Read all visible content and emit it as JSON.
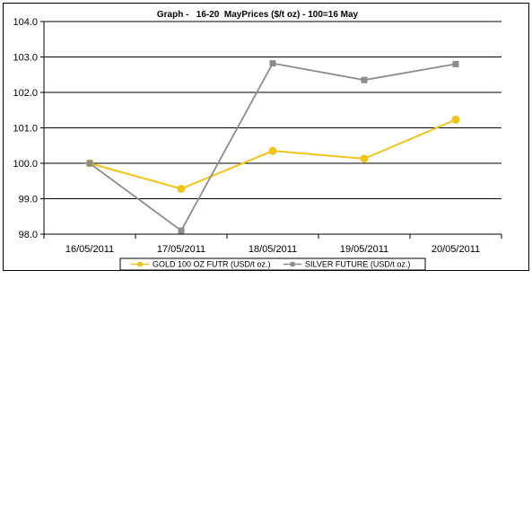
{
  "chart_data": {
    "type": "line",
    "title": "Graph -   16-20  MayPrices ($/t oz) - 100=16 May",
    "xlabel": "",
    "ylabel": "",
    "categories": [
      "16/05/2011",
      "17/05/2011",
      "18/05/2011",
      "19/05/2011",
      "20/05/2011"
    ],
    "ylim": [
      98.0,
      104.0
    ],
    "yticks": [
      "98.0",
      "99.0",
      "100.0",
      "101.0",
      "102.0",
      "103.0",
      "104.0"
    ],
    "grid": true,
    "legend_position": "bottom",
    "series": [
      {
        "name": "GOLD 100 OZ FUTR (USD/t oz.)",
        "color": "#f0c419",
        "marker": "circle",
        "values": [
          100.0,
          99.28,
          100.35,
          100.13,
          101.23
        ]
      },
      {
        "name": "SILVER FUTURE (USD/t oz.)",
        "color": "#8c8c8c",
        "marker": "square",
        "values": [
          100.0,
          98.1,
          102.82,
          102.35,
          102.8
        ]
      }
    ]
  }
}
